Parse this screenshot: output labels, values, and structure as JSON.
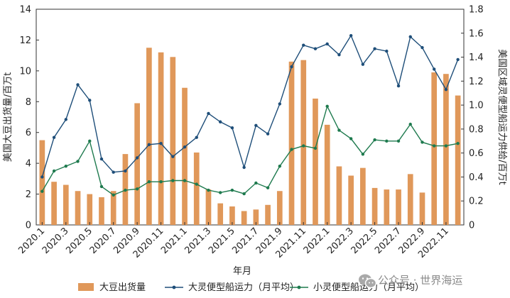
{
  "chart_data": {
    "type": "bar+line",
    "title": "",
    "xlabel": "年月",
    "ylabel_left": "美国大豆出货量/百万t",
    "ylabel_right": "美国区域灵便型船运力供给/百万t",
    "ylim_left": [
      0,
      14
    ],
    "ylim_right": [
      0,
      1.8
    ],
    "yticks_left": [
      "0",
      "2",
      "4",
      "6",
      "8",
      "10",
      "12",
      "14"
    ],
    "yticks_right": [
      "0",
      "0.2",
      "0.4",
      "0.6",
      "0.8",
      "1.0",
      "1.2",
      "1.4",
      "1.6",
      "1.8"
    ],
    "categories": [
      "2020.1",
      "2020.2",
      "2020.3",
      "2020.4",
      "2020.5",
      "2020.6",
      "2020.7",
      "2020.8",
      "2020.9",
      "2020.10",
      "2020.11",
      "2020.12",
      "2021.1",
      "2021.2",
      "2021.3",
      "2021.4",
      "2021.5",
      "2021.6",
      "2021.7",
      "2021.8",
      "2021.9",
      "2021.10",
      "2021.11",
      "2021.12",
      "2022.1",
      "2022.2",
      "2022.3",
      "2022.4",
      "2022.5",
      "2022.6",
      "2022.7",
      "2022.8",
      "2022.9",
      "2022.10",
      "2022.11",
      "2022.12"
    ],
    "x_tick_labels": [
      "2020.1",
      "2020.3",
      "2020.5",
      "2020.7",
      "2020.9",
      "2020.11",
      "2021.1",
      "2021.3",
      "2021.5",
      "2021.7",
      "2021.9",
      "2021.11",
      "2022.1",
      "2022.3",
      "2022.5",
      "2022.7",
      "2022.9",
      "2022.11"
    ],
    "series": [
      {
        "name": "大豆出货量",
        "type": "bar",
        "axis": "left",
        "color": "#E0985A",
        "values": [
          5.5,
          2.8,
          2.6,
          2.2,
          2.0,
          1.8,
          2.2,
          4.6,
          7.9,
          11.5,
          11.2,
          10.9,
          8.9,
          4.7,
          2.3,
          1.4,
          1.2,
          0.9,
          1.0,
          1.3,
          2.2,
          10.6,
          10.7,
          8.2,
          6.5,
          3.8,
          3.2,
          3.7,
          2.4,
          2.3,
          2.3,
          3.3,
          2.1,
          9.9,
          9.8,
          8.4
        ]
      },
      {
        "name": "大灵便型船运力（月平均）",
        "type": "line",
        "axis": "right",
        "color": "#1E4E79",
        "values": [
          0.4,
          0.73,
          0.88,
          1.17,
          1.04,
          0.55,
          0.44,
          0.45,
          0.56,
          0.67,
          0.68,
          0.57,
          0.65,
          0.73,
          0.93,
          0.86,
          0.81,
          0.48,
          0.83,
          0.76,
          1.01,
          1.32,
          1.5,
          1.47,
          1.51,
          1.42,
          1.58,
          1.34,
          1.47,
          1.45,
          1.16,
          1.57,
          1.48,
          1.3,
          1.13,
          1.38
        ]
      },
      {
        "name": "小灵便型船运力（月平均）",
        "type": "line",
        "axis": "right",
        "color": "#1E7A4E",
        "values": [
          0.28,
          0.45,
          0.49,
          0.53,
          0.7,
          0.32,
          0.25,
          0.29,
          0.3,
          0.36,
          0.36,
          0.37,
          0.37,
          0.34,
          0.29,
          0.27,
          0.29,
          0.26,
          0.35,
          0.31,
          0.49,
          0.63,
          0.66,
          0.64,
          0.99,
          0.79,
          0.72,
          0.59,
          0.71,
          0.7,
          0.7,
          0.84,
          0.69,
          0.66,
          0.66,
          0.68
        ]
      }
    ],
    "legend": [
      "大豆出货量",
      "大灵便型船运力（月平均）",
      "小灵便型船运力（月平均）"
    ],
    "legend_position": "bottom"
  },
  "watermark": {
    "text": "公众号 · 世界海运",
    "icon": "wechat-icon"
  }
}
